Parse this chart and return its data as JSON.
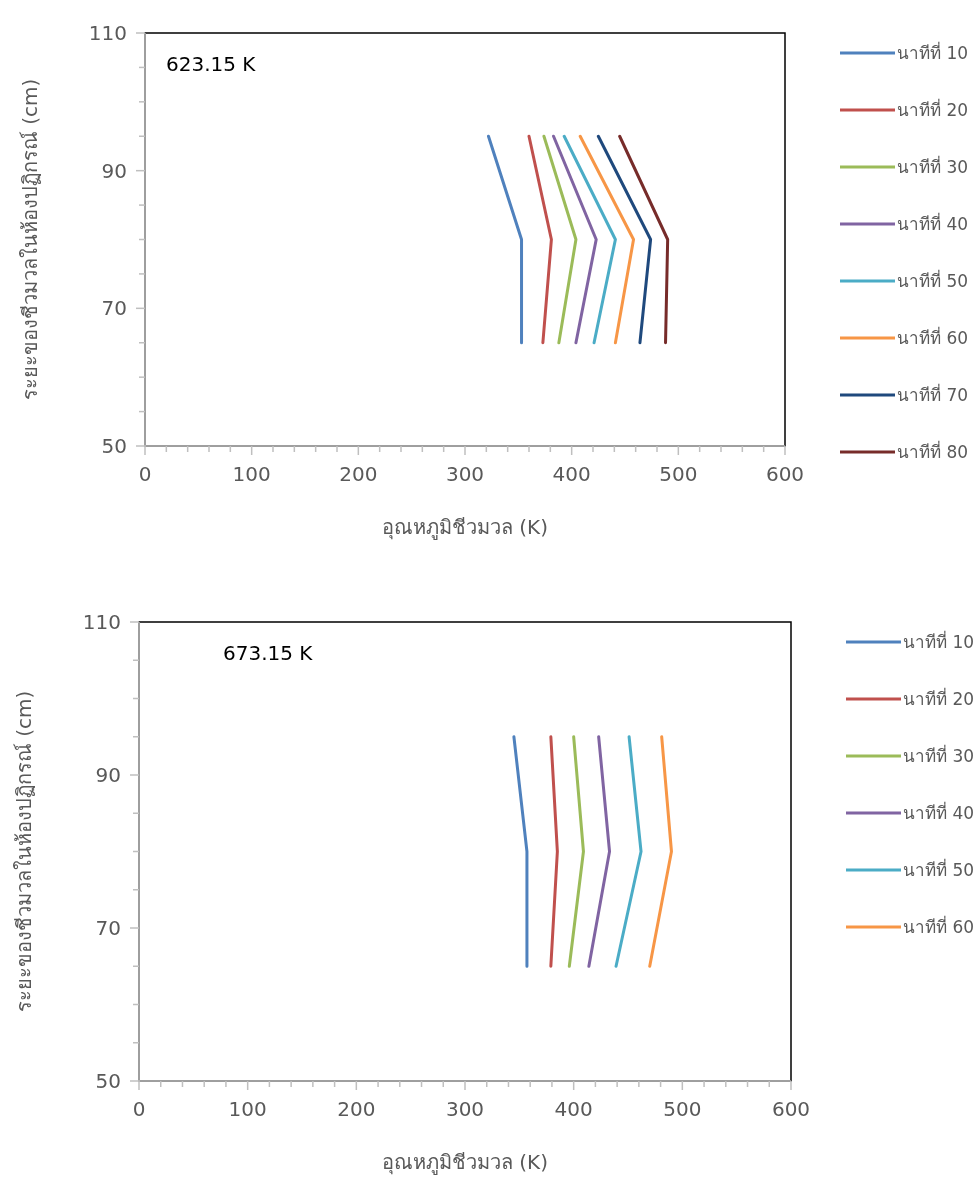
{
  "chart_data": [
    {
      "type": "line",
      "xlabel": "อุณหภูมิชีวมวล (K)",
      "ylabel": "ระยะของชีวมวลในห้องปฏิกรณ์ (cm)",
      "annotations": [
        "623.15 K"
      ],
      "legend": "right",
      "xlim": [
        0,
        600
      ],
      "ylim": [
        50,
        110
      ],
      "xticks": [
        0,
        {
          "value": 20,
          "label": null
        },
        {
          "value": 40,
          "label": null
        },
        {
          "value": 60,
          "label": null
        },
        {
          "value": 80,
          "label": null
        },
        100,
        {
          "value": 120,
          "label": null
        },
        {
          "value": 140,
          "label": null
        },
        {
          "value": 160,
          "label": null
        },
        {
          "value": 180,
          "label": null
        },
        200,
        {
          "value": 220,
          "label": null
        },
        {
          "value": 240,
          "label": null
        },
        {
          "value": 260,
          "label": null
        },
        {
          "value": 280,
          "label": null
        },
        300,
        {
          "value": 320,
          "label": null
        },
        {
          "value": 340,
          "label": null
        },
        {
          "value": 360,
          "label": null
        },
        {
          "value": 380,
          "label": null
        },
        400,
        {
          "value": 420,
          "label": null
        },
        {
          "value": 440,
          "label": null
        },
        {
          "value": 460,
          "label": null
        },
        {
          "value": 480,
          "label": null
        },
        500,
        {
          "value": 520,
          "label": null
        },
        {
          "value": 540,
          "label": null
        },
        {
          "value": 560,
          "label": null
        },
        {
          "value": 580,
          "label": null
        },
        600
      ],
      "yticks": [
        50,
        {
          "value": 55,
          "label": null
        },
        {
          "value": 60,
          "label": null
        },
        {
          "value": 65,
          "label": null
        },
        70,
        {
          "value": 75,
          "label": null
        },
        {
          "value": 80,
          "label": null
        },
        {
          "value": 85,
          "label": null
        },
        90,
        {
          "value": 95,
          "label": null
        },
        {
          "value": 100,
          "label": null
        },
        {
          "value": 105,
          "label": null
        },
        110
      ],
      "series": [
        {
          "name": "นาทีที่ 10",
          "color": "#4f81bd",
          "x": [
            322,
            353,
            353
          ],
          "values": [
            95,
            80,
            65
          ]
        },
        {
          "name": "นาทีที่ 20",
          "color": "#c0504d",
          "x": [
            360,
            381,
            373
          ],
          "values": [
            95,
            80,
            65
          ]
        },
        {
          "name": "นาทีที่ 30",
          "color": "#9bbb59",
          "x": [
            374,
            404,
            388
          ],
          "values": [
            95,
            80,
            65
          ]
        },
        {
          "name": "นาทีที่ 40",
          "color": "#8064a2",
          "x": [
            383,
            423,
            404
          ],
          "values": [
            95,
            80,
            65
          ]
        },
        {
          "name": "นาทีที่ 50",
          "color": "#4bacc6",
          "x": [
            393,
            441,
            421
          ],
          "values": [
            95,
            80,
            65
          ]
        },
        {
          "name": "นาทีที่ 60",
          "color": "#f79646",
          "x": [
            408,
            458,
            441
          ],
          "values": [
            95,
            80,
            65
          ]
        },
        {
          "name": "นาทีที่ 70",
          "color": "#1f497d",
          "x": [
            425,
            474,
            464
          ],
          "values": [
            95,
            80,
            65
          ]
        },
        {
          "name": "นาทีที่ 80",
          "color": "#772c2a",
          "x": [
            445,
            490,
            488
          ],
          "values": [
            95,
            80,
            65
          ]
        }
      ]
    },
    {
      "type": "line",
      "xlabel": "อุณหภูมิชีวมวล (K)",
      "ylabel": "ระยะของชีวมวลในห้องปฏิกรณ์ (cm)",
      "annotations": [
        "673.15 K"
      ],
      "legend": "right",
      "xlim": [
        0,
        600
      ],
      "ylim": [
        50,
        110
      ],
      "xticks": [
        0,
        {
          "value": 20,
          "label": null
        },
        {
          "value": 40,
          "label": null
        },
        {
          "value": 60,
          "label": null
        },
        {
          "value": 80,
          "label": null
        },
        100,
        {
          "value": 120,
          "label": null
        },
        {
          "value": 140,
          "label": null
        },
        {
          "value": 160,
          "label": null
        },
        {
          "value": 180,
          "label": null
        },
        200,
        {
          "value": 220,
          "label": null
        },
        {
          "value": 240,
          "label": null
        },
        {
          "value": 260,
          "label": null
        },
        {
          "value": 280,
          "label": null
        },
        300,
        {
          "value": 320,
          "label": null
        },
        {
          "value": 340,
          "label": null
        },
        {
          "value": 360,
          "label": null
        },
        {
          "value": 380,
          "label": null
        },
        400,
        {
          "value": 420,
          "label": null
        },
        {
          "value": 440,
          "label": null
        },
        {
          "value": 460,
          "label": null
        },
        {
          "value": 480,
          "label": null
        },
        500,
        {
          "value": 520,
          "label": null
        },
        {
          "value": 540,
          "label": null
        },
        {
          "value": 560,
          "label": null
        },
        {
          "value": 580,
          "label": null
        },
        600
      ],
      "yticks": [
        50,
        {
          "value": 55,
          "label": null
        },
        {
          "value": 60,
          "label": null
        },
        {
          "value": 65,
          "label": null
        },
        70,
        {
          "value": 75,
          "label": null
        },
        {
          "value": 80,
          "label": null
        },
        {
          "value": 85,
          "label": null
        },
        90,
        {
          "value": 95,
          "label": null
        },
        {
          "value": 100,
          "label": null
        },
        {
          "value": 105,
          "label": null
        },
        110
      ],
      "series": [
        {
          "name": "นาทีที่ 10",
          "color": "#4f81bd",
          "x": [
            345,
            357,
            357
          ],
          "values": [
            95,
            80,
            65
          ]
        },
        {
          "name": "นาทีที่ 20",
          "color": "#c0504d",
          "x": [
            379,
            385,
            379
          ],
          "values": [
            95,
            80,
            65
          ]
        },
        {
          "name": "นาทีที่ 30",
          "color": "#9bbb59",
          "x": [
            400,
            409,
            396
          ],
          "values": [
            95,
            80,
            65
          ]
        },
        {
          "name": "นาทีที่ 40",
          "color": "#8064a2",
          "x": [
            423,
            433,
            414
          ],
          "values": [
            95,
            80,
            65
          ]
        },
        {
          "name": "นาทีที่ 50",
          "color": "#4bacc6",
          "x": [
            451,
            462,
            439
          ],
          "values": [
            95,
            80,
            65
          ]
        },
        {
          "name": "นาทีที่ 60",
          "color": "#f79646",
          "x": [
            481,
            490,
            470
          ],
          "values": [
            95,
            80,
            65
          ]
        }
      ]
    }
  ]
}
